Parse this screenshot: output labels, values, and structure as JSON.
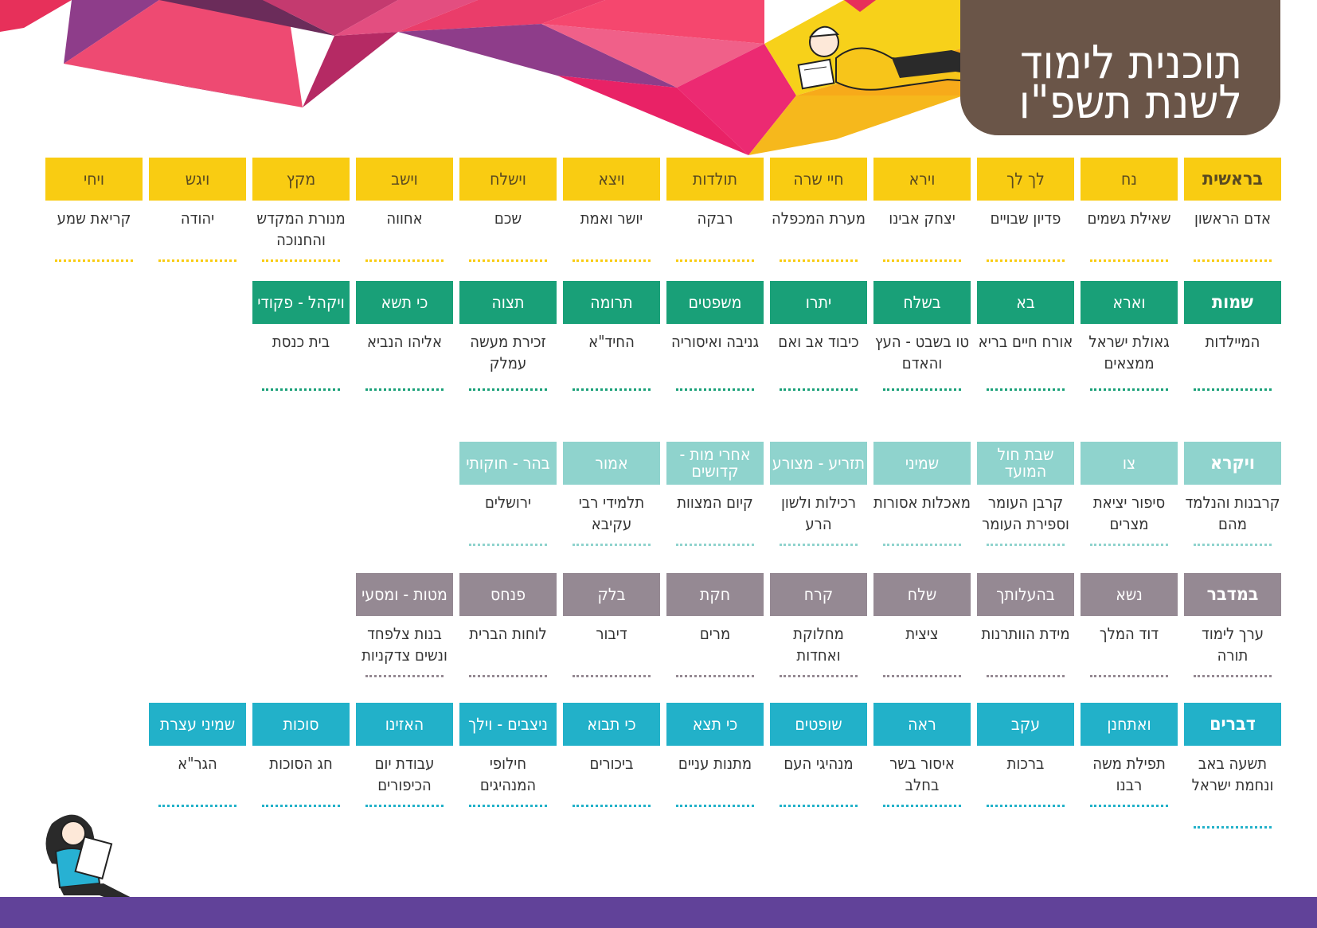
{
  "header": {
    "title_line1": "תוכנית לימוד",
    "title_line2": "לשנת תשפ\"ו"
  },
  "colors": {
    "bereshit": "#f9cc12",
    "shemot": "#19a078",
    "vayikra": "#8fd3cd",
    "bamidbar": "#958993",
    "devarim": "#22b1c9",
    "title_box": "#6a5548",
    "bottom_bar": "#614299"
  },
  "rows": [
    {
      "color": "bereshit",
      "text_color": "#5a4a20",
      "items": [
        {
          "header": "בראשית",
          "label": "אדם הראשון",
          "book": true
        },
        {
          "header": "נח",
          "label": "שאילת גשמים"
        },
        {
          "header": "לך לך",
          "label": "פדיון שבויים"
        },
        {
          "header": "וירא",
          "label": "יצחק אבינו"
        },
        {
          "header": "חיי שרה",
          "label": "מערת המכפלה"
        },
        {
          "header": "תולדות",
          "label": "רבקה"
        },
        {
          "header": "ויצא",
          "label": "יושר ואמת"
        },
        {
          "header": "וישלח",
          "label": "שכם"
        },
        {
          "header": "וישב",
          "label": "אחווה"
        },
        {
          "header": "מקץ",
          "label": "מנורת המקדש והחנוכה"
        },
        {
          "header": "ויגש",
          "label": "יהודה"
        },
        {
          "header": "ויחי",
          "label": "קריאת שמע"
        }
      ]
    },
    {
      "color": "shemot",
      "text_color": "#ffffff",
      "items": [
        {
          "header": "שמות",
          "label": "המיילדות",
          "book": true
        },
        {
          "header": "וארא",
          "label": "גאולת ישראל ממצאים"
        },
        {
          "header": "בא",
          "label": "אורח חיים בריא"
        },
        {
          "header": "בשלח",
          "label": "טו בשבט - העץ והאדם"
        },
        {
          "header": "יתרו",
          "label": "כיבוד אב ואם"
        },
        {
          "header": "משפטים",
          "label": "גניבה ואיסוריה"
        },
        {
          "header": "תרומה",
          "label": "החיד\"א"
        },
        {
          "header": "תצוה",
          "label": "זכירת מעשה עמלק"
        },
        {
          "header": "כי תשא",
          "label": "אליהו הנביא"
        },
        {
          "header": "ויקהל - פקודי",
          "label": "בית כנסת"
        }
      ]
    },
    {
      "color": "vayikra",
      "text_color": "#ffffff",
      "items": [
        {
          "header": "ויקרא",
          "label": "קרבנות והנלמד מהם",
          "book": true
        },
        {
          "header": "צו",
          "label": "סיפור יציאת מצרים"
        },
        {
          "header": "שבת חול המועד",
          "label": "קרבן העומר וספירת העומר"
        },
        {
          "header": "שמיני",
          "label": "מאכלות אסורות"
        },
        {
          "header": "תזריע - מצורע",
          "label": "רכילות ולשון הרע"
        },
        {
          "header": "אחרי מות - קדושים",
          "label": "קיום המצוות"
        },
        {
          "header": "אמור",
          "label": "תלמידי רבי עקיבא"
        },
        {
          "header": "בהר - חוקותי",
          "label": "ירושלים"
        }
      ]
    },
    {
      "color": "bamidbar",
      "text_color": "#ffffff",
      "items": [
        {
          "header": "במדבר",
          "label": "ערך לימוד תורה",
          "book": true
        },
        {
          "header": "נשא",
          "label": "דוד המלך"
        },
        {
          "header": "בהעלותך",
          "label": "מידת הוותרנות"
        },
        {
          "header": "שלח",
          "label": "ציצית"
        },
        {
          "header": "קרח",
          "label": "מחלוקת ואחדות"
        },
        {
          "header": "חקת",
          "label": "מרים"
        },
        {
          "header": "בלק",
          "label": "דיבור"
        },
        {
          "header": "פנחס",
          "label": "לוחות הברית"
        },
        {
          "header": "מטות - ומסעי",
          "label": "בנות צלפחד ונשים צדקניות"
        }
      ]
    },
    {
      "color": "devarim",
      "text_color": "#ffffff",
      "items": [
        {
          "header": "דברים",
          "label": "תשעה באב ונחמת ישראל",
          "book": true
        },
        {
          "header": "ואתחנן",
          "label": "תפילת משה רבנו"
        },
        {
          "header": "עקב",
          "label": "ברכות"
        },
        {
          "header": "ראה",
          "label": "איסור בשר בחלב"
        },
        {
          "header": "שופטים",
          "label": "מנהיגי העם"
        },
        {
          "header": "כי תצא",
          "label": "מתנות עניים"
        },
        {
          "header": "כי תבוא",
          "label": "ביכורים"
        },
        {
          "header": "ניצבים - וילך",
          "label": "חילופי המנהיגים"
        },
        {
          "header": "האזינו",
          "label": "עבודת יום הכיפורים"
        },
        {
          "header": "סוכות",
          "label": "חג הסוכות"
        },
        {
          "header": "שמיני עצרת",
          "label": "הגר\"א"
        }
      ]
    }
  ]
}
